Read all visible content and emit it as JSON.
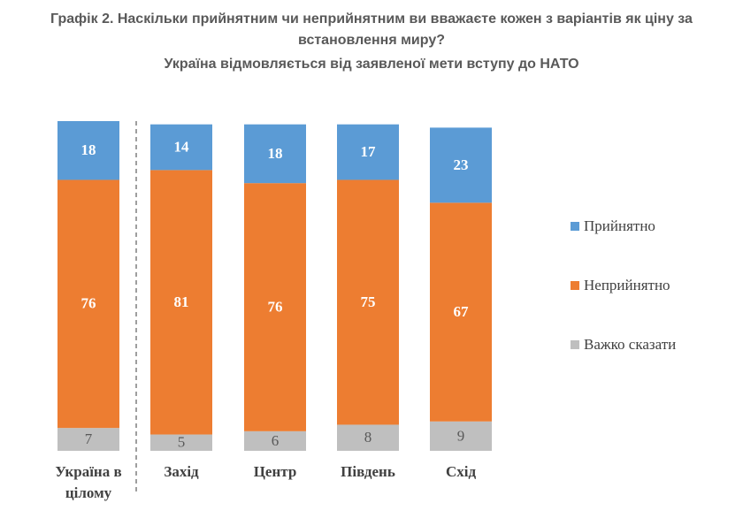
{
  "chart_data": {
    "type": "stacked_bar",
    "title": "Графік 2. Наскільки прийнятним чи неприйнятним ви вважаєте кожен з варіантів як ціну за встановлення миру?",
    "subtitle": "Україна відмовляється від заявленої мети вступу до НАТО",
    "categories": [
      "Україна в цілому",
      "Захід",
      "Центр",
      "Південь",
      "Схід"
    ],
    "series": [
      {
        "name": "Прийнятно",
        "color": "#5b9bd5",
        "values": [
          18,
          14,
          18,
          17,
          23
        ]
      },
      {
        "name": "Неприйнятно",
        "color": "#ed7d31",
        "values": [
          76,
          81,
          76,
          75,
          67
        ]
      },
      {
        "name": "Важко сказати",
        "color": "#bfbfbf",
        "values": [
          7,
          5,
          6,
          8,
          9
        ]
      }
    ],
    "legend": "right"
  }
}
